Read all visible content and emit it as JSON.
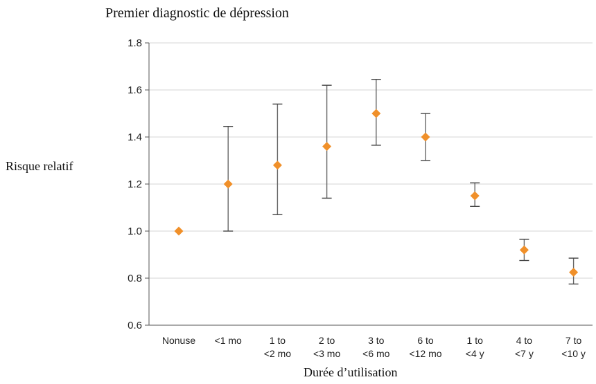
{
  "chart_data": {
    "type": "scatter",
    "title": "Premier diagnostic de dépression",
    "xlabel": "Durée d’utilisation",
    "ylabel": "Risque relatif",
    "ylim": [
      0.6,
      1.8
    ],
    "yticks": [
      "0.6",
      "0.8",
      "1.0",
      "1.2",
      "1.4",
      "1.6",
      "1.8"
    ],
    "grid": true,
    "categories": [
      [
        "Nonuse"
      ],
      [
        "<1 mo"
      ],
      [
        "1 to",
        "<2 mo"
      ],
      [
        "2 to",
        "<3 mo"
      ],
      [
        "3 to",
        "<6 mo"
      ],
      [
        "6 to",
        "<12 mo"
      ],
      [
        "1 to",
        "<4 y"
      ],
      [
        "4 to",
        "<7 y"
      ],
      [
        "7 to",
        "<10 y"
      ]
    ],
    "values": [
      1.0,
      1.2,
      1.28,
      1.36,
      1.5,
      1.4,
      1.15,
      0.92,
      0.825
    ],
    "ci_low": [
      null,
      1.0,
      1.07,
      1.14,
      1.365,
      1.3,
      1.105,
      0.875,
      0.775
    ],
    "ci_high": [
      null,
      1.445,
      1.54,
      1.62,
      1.645,
      1.5,
      1.205,
      0.965,
      0.885
    ],
    "marker_color": "#f0902a",
    "errorbar_color": "#666666",
    "grid_color": "#d4d4d4"
  }
}
